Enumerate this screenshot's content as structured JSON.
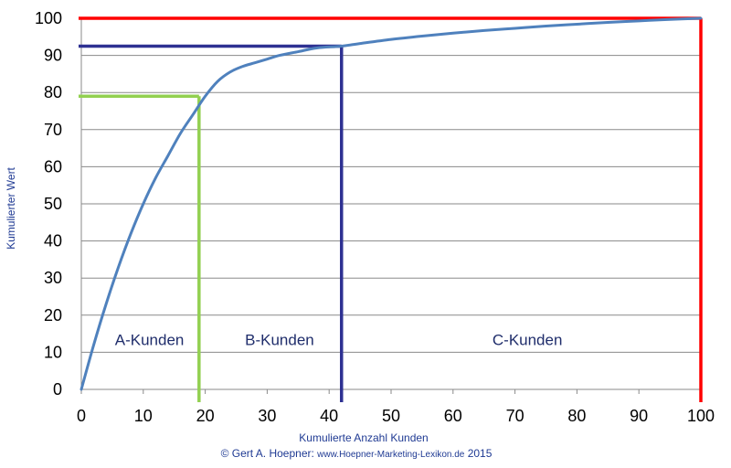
{
  "chart_data": {
    "type": "line",
    "title": "",
    "xlabel": "Kumulierte Anzahl Kunden",
    "ylabel": "Kumulierter Wert",
    "xlim": [
      0,
      100
    ],
    "ylim": [
      0,
      100
    ],
    "x_ticks": [
      "0",
      "10",
      "20",
      "30",
      "40",
      "50",
      "60",
      "70",
      "80",
      "90",
      "100"
    ],
    "y_ticks": [
      "0",
      "10",
      "20",
      "30",
      "40",
      "50",
      "60",
      "70",
      "80",
      "90",
      "100"
    ],
    "grid": "horizontal",
    "series": [
      {
        "color": "#4f81bd",
        "x": [
          0,
          2,
          4,
          6,
          8,
          10,
          12,
          14,
          16,
          18,
          20,
          22,
          24,
          26,
          28,
          30,
          32,
          35,
          38,
          42,
          45,
          50,
          55,
          60,
          65,
          70,
          75,
          80,
          85,
          90,
          95,
          100
        ],
        "y": [
          0,
          12,
          23,
          33,
          42,
          50,
          57,
          63,
          69,
          74,
          79,
          83,
          85.5,
          87,
          88,
          89,
          90,
          91,
          92,
          92.5,
          93.2,
          94.3,
          95.2,
          96,
          96.7,
          97.3,
          97.9,
          98.4,
          98.9,
          99.3,
          99.7,
          100
        ]
      }
    ],
    "thresholds": [
      {
        "x": 19,
        "y": 79,
        "color": "#92d050"
      },
      {
        "x": 42,
        "y": 92.5,
        "color": "#2e3192"
      },
      {
        "x": 100,
        "y": 100,
        "color": "#ff0000"
      }
    ],
    "regions": [
      {
        "label": "A-Kunden",
        "x": 11,
        "y": 12
      },
      {
        "label": "B-Kunden",
        "x": 32,
        "y": 12
      },
      {
        "label": "C-Kunden",
        "x": 72,
        "y": 12
      }
    ]
  },
  "credit": {
    "prefix": "© Gert A. Hoepner: ",
    "site": "www.Hoepner-Marketing-Lexikon.de",
    "year": " 2015"
  }
}
